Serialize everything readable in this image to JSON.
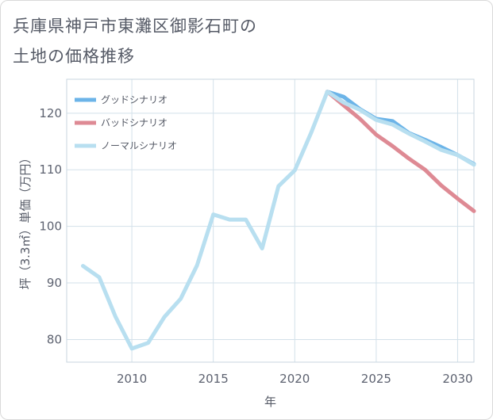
{
  "title_lines": [
    "兵庫県神戸市東灘区御影石町の",
    "土地の価格推移"
  ],
  "chart_data": {
    "type": "line",
    "title": "兵庫県神戸市東灘区御影石町の土地の価格推移",
    "xlabel": "年",
    "ylabel": "坪（3.3㎡）単価（万円）",
    "xlim": [
      2006,
      2031
    ],
    "ylim": [
      76,
      126
    ],
    "xticks": [
      2010,
      2015,
      2020,
      2025,
      2030
    ],
    "yticks": [
      80,
      90,
      100,
      110,
      120
    ],
    "legend_position": "top-left",
    "series": [
      {
        "name": "グッドシナリオ",
        "color": "#6cb4e8",
        "x": [
          2022,
          2023,
          2024,
          2025,
          2026,
          2027,
          2028,
          2029,
          2030,
          2031
        ],
        "y": [
          123.8,
          122.9,
          120.7,
          119.0,
          118.6,
          116.5,
          115.3,
          114.0,
          112.6,
          111.0
        ]
      },
      {
        "name": "バッドシナリオ",
        "color": "#de8a94",
        "x": [
          2022,
          2023,
          2024,
          2025,
          2026,
          2027,
          2028,
          2029,
          2030,
          2031
        ],
        "y": [
          123.8,
          121.4,
          119.0,
          116.2,
          114.2,
          112.0,
          110.0,
          107.2,
          104.9,
          102.7
        ]
      },
      {
        "name": "ノーマルシナリオ",
        "color": "#b8dff0",
        "x": [
          2007,
          2008,
          2009,
          2010,
          2011,
          2012,
          2013,
          2014,
          2015,
          2016,
          2017,
          2018,
          2019,
          2020,
          2021,
          2022,
          2023,
          2024,
          2025,
          2026,
          2027,
          2028,
          2029,
          2030,
          2031
        ],
        "y": [
          93.0,
          91.0,
          84.0,
          78.4,
          79.4,
          84.0,
          87.2,
          93.1,
          102.1,
          101.2,
          101.2,
          96.1,
          107.1,
          109.9,
          116.5,
          123.8,
          121.9,
          120.6,
          118.8,
          118.0,
          116.4,
          115.0,
          113.5,
          112.6,
          110.9
        ]
      }
    ]
  }
}
